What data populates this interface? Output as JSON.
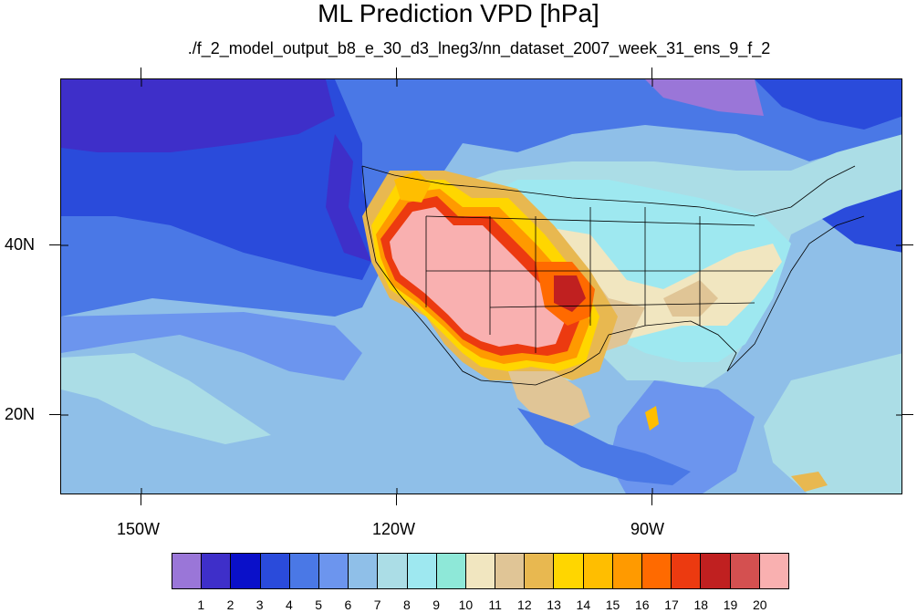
{
  "title": "ML Prediction VPD [hPa]",
  "subtitle": "./f_2_model_output_b8_e_30_d3_lneg3/nn_dataset_2007_week_31_ens_9_f_2",
  "map": {
    "lat_labels": [
      "40N",
      "20N"
    ],
    "lon_labels": [
      "150W",
      "120W",
      "90W"
    ],
    "lat_range": [
      11,
      60
    ],
    "lon_range": [
      -160,
      -62
    ]
  },
  "colorbar": {
    "labels": [
      "1",
      "2",
      "3",
      "4",
      "5",
      "6",
      "7",
      "8",
      "9",
      "10",
      "11",
      "12",
      "13",
      "14",
      "15",
      "16",
      "17",
      "18",
      "19",
      "20"
    ],
    "colors": [
      "#9a76d8",
      "#3e2fc9",
      "#0a10c9",
      "#2a4bdb",
      "#4a78e6",
      "#6c95ee",
      "#8fbfe8",
      "#abdde6",
      "#9ee8f0",
      "#8ee8d8",
      "#f1e6c0",
      "#e0c596",
      "#e8b850",
      "#ffd600",
      "#ffbe00",
      "#ff9a00",
      "#ff6a00",
      "#ec3a10",
      "#c02020",
      "#d45050",
      "#f9b0b0"
    ]
  }
}
